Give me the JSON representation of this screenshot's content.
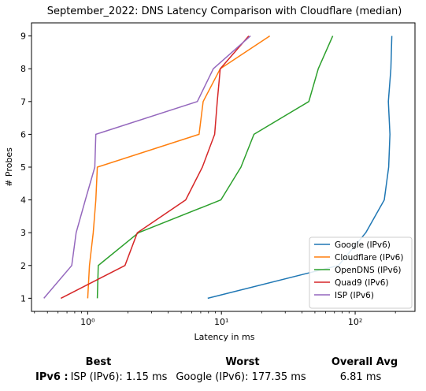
{
  "chart_data": {
    "type": "line",
    "title": "September_2022: DNS Latency Comparison with Cloudflare (median)",
    "xlabel": "Latency in ms",
    "ylabel": "# Probes",
    "xscale": "log",
    "xlim": [
      0.38,
      280
    ],
    "ylim": [
      0.6,
      9.4
    ],
    "xticks": [
      1,
      10,
      100
    ],
    "xtick_labels": [
      "10⁰",
      "10¹",
      "10²"
    ],
    "yticks": [
      1,
      2,
      3,
      4,
      5,
      6,
      7,
      8,
      9
    ],
    "legend_position": "lower-right",
    "grid": false,
    "series": [
      {
        "name": "Google (IPv6)",
        "color": "#1f77b4",
        "points": [
          [
            7.9,
            1
          ],
          [
            75,
            2
          ],
          [
            120,
            3
          ],
          [
            165,
            4
          ],
          [
            178,
            5
          ],
          [
            182,
            6
          ],
          [
            177,
            7
          ],
          [
            185,
            8
          ],
          [
            188,
            9
          ]
        ]
      },
      {
        "name": "Cloudflare (IPv6)",
        "color": "#ff7f0e",
        "points": [
          [
            1.0,
            1
          ],
          [
            1.03,
            2
          ],
          [
            1.1,
            3
          ],
          [
            1.15,
            4
          ],
          [
            1.18,
            5
          ],
          [
            6.8,
            6
          ],
          [
            7.3,
            7
          ],
          [
            9.8,
            8
          ],
          [
            23,
            9
          ]
        ]
      },
      {
        "name": "OpenDNS (IPv6)",
        "color": "#2ca02c",
        "points": [
          [
            1.18,
            1
          ],
          [
            1.2,
            2
          ],
          [
            2.4,
            3
          ],
          [
            9.9,
            4
          ],
          [
            14,
            5
          ],
          [
            17.5,
            6
          ],
          [
            45,
            7
          ],
          [
            53,
            8
          ],
          [
            68,
            9
          ]
        ]
      },
      {
        "name": "Quad9 (IPv6)",
        "color": "#d62728",
        "points": [
          [
            0.63,
            1
          ],
          [
            1.9,
            2
          ],
          [
            2.35,
            3
          ],
          [
            5.4,
            4
          ],
          [
            7.2,
            5
          ],
          [
            8.9,
            6
          ],
          [
            9.3,
            7
          ],
          [
            9.8,
            8
          ],
          [
            16,
            9
          ]
        ]
      },
      {
        "name": "ISP (IPv6)",
        "color": "#9467bd",
        "points": [
          [
            0.47,
            1
          ],
          [
            0.76,
            2
          ],
          [
            0.82,
            3
          ],
          [
            0.96,
            4
          ],
          [
            1.13,
            5
          ],
          [
            1.15,
            6
          ],
          [
            6.6,
            7
          ],
          [
            8.7,
            8
          ],
          [
            16.5,
            9
          ]
        ]
      }
    ]
  },
  "summary": {
    "headers": {
      "best": "Best",
      "worst": "Worst",
      "overall": "Overall Avg"
    },
    "row_label": "IPv6 :",
    "best": "ISP (IPv6): 1.15 ms",
    "worst": "Google (IPv6): 177.35 ms",
    "overall": "6.81 ms"
  }
}
